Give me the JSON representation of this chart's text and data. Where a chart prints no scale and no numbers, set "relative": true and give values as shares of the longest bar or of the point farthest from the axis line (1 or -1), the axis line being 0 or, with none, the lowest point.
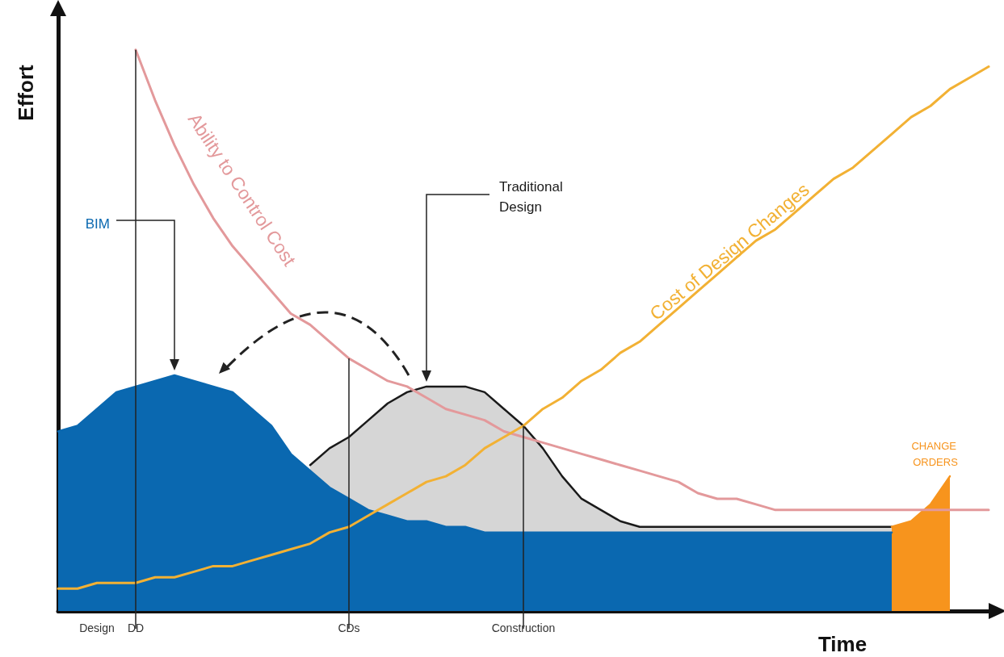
{
  "chart_data": {
    "type": "area",
    "relative": true,
    "xlabel": "Time",
    "ylabel": "Effort",
    "legend": false,
    "grid": false,
    "marker": "none",
    "line_style": "solid",
    "categories": [
      null,
      null,
      "Design",
      null,
      "DD",
      null,
      null,
      null,
      null,
      null,
      null,
      null,
      null,
      null,
      null,
      "CDs",
      null,
      null,
      null,
      null,
      null,
      null,
      null,
      null,
      "Construction",
      null,
      null,
      null,
      null,
      null,
      null,
      null,
      null,
      null,
      null,
      null,
      null,
      null,
      null,
      null,
      null,
      null,
      null,
      null,
      null,
      null,
      null,
      null,
      null
    ],
    "ref_lines": [
      {
        "axis": "x",
        "value": "DD"
      },
      {
        "axis": "x",
        "value": "CDs"
      },
      {
        "axis": "x",
        "value": "Construction"
      }
    ],
    "series": [
      {
        "name": "Traditional Design",
        "color": "#1a1a1a",
        "values": [
          null,
          null,
          null,
          null,
          null,
          null,
          null,
          null,
          null,
          null,
          null,
          null,
          null,
          0.26,
          0.29,
          0.31,
          0.34,
          0.37,
          0.39,
          0.4,
          0.4,
          0.4,
          0.39,
          0.36,
          0.33,
          0.29,
          0.24,
          0.2,
          0.18,
          0.16,
          0.15,
          0.15,
          0.15,
          0.15,
          0.15,
          0.15,
          0.15,
          0.15,
          0.15,
          0.15,
          0.15,
          0.15,
          0.15,
          0.15,
          null,
          null,
          null,
          null,
          null
        ]
      },
      {
        "name": "BIM",
        "color": "#0a68b0",
        "values": [
          0.32,
          0.33,
          0.36,
          0.39,
          0.4,
          0.41,
          0.42,
          0.41,
          0.4,
          0.39,
          0.36,
          0.33,
          0.28,
          0.25,
          0.22,
          0.2,
          0.18,
          0.17,
          0.16,
          0.16,
          0.15,
          0.15,
          0.14,
          0.14,
          0.14,
          0.14,
          0.14,
          0.14,
          0.14,
          0.14,
          0.14,
          0.14,
          0.14,
          0.14,
          0.14,
          0.14,
          0.14,
          0.14,
          0.14,
          0.14,
          0.14,
          0.14,
          0.14,
          0.14,
          null,
          null,
          null,
          null,
          null
        ]
      },
      {
        "name": "CHANGE ORDERS",
        "color": "#f7941d",
        "values": [
          null,
          null,
          null,
          null,
          null,
          null,
          null,
          null,
          null,
          null,
          null,
          null,
          null,
          null,
          null,
          null,
          null,
          null,
          null,
          null,
          null,
          null,
          null,
          null,
          null,
          null,
          null,
          null,
          null,
          null,
          null,
          null,
          null,
          null,
          null,
          null,
          null,
          null,
          null,
          null,
          null,
          null,
          null,
          0.15,
          0.16,
          0.19,
          0.24,
          null,
          null
        ]
      },
      {
        "name": "Ability to Control Cost",
        "type": "line",
        "color": "#e3999b",
        "values": [
          null,
          null,
          null,
          null,
          1.0,
          0.91,
          0.83,
          0.76,
          0.7,
          0.65,
          0.61,
          0.57,
          0.53,
          0.51,
          0.48,
          0.45,
          0.43,
          0.41,
          0.4,
          0.38,
          0.36,
          0.35,
          0.34,
          0.32,
          0.31,
          0.3,
          0.29,
          0.28,
          0.27,
          0.26,
          0.25,
          0.24,
          0.23,
          0.21,
          0.2,
          0.2,
          0.19,
          0.18,
          0.18,
          0.18,
          0.18,
          0.18,
          0.18,
          0.18,
          0.18,
          0.18,
          0.18,
          0.18,
          0.18
        ]
      },
      {
        "name": "Cost of Design Changes",
        "type": "line",
        "color": "#f2b134",
        "values": [
          0.04,
          0.04,
          0.05,
          0.05,
          0.05,
          0.06,
          0.06,
          0.07,
          0.08,
          0.08,
          0.09,
          0.1,
          0.11,
          0.12,
          0.14,
          0.15,
          0.17,
          0.19,
          0.21,
          0.23,
          0.24,
          0.26,
          0.29,
          0.31,
          0.33,
          0.36,
          0.38,
          0.41,
          0.43,
          0.46,
          0.48,
          0.51,
          0.54,
          0.57,
          0.6,
          0.63,
          0.66,
          0.68,
          0.71,
          0.74,
          0.77,
          0.79,
          0.82,
          0.85,
          0.88,
          0.9,
          0.93,
          0.95,
          0.97
        ]
      }
    ]
  }
}
